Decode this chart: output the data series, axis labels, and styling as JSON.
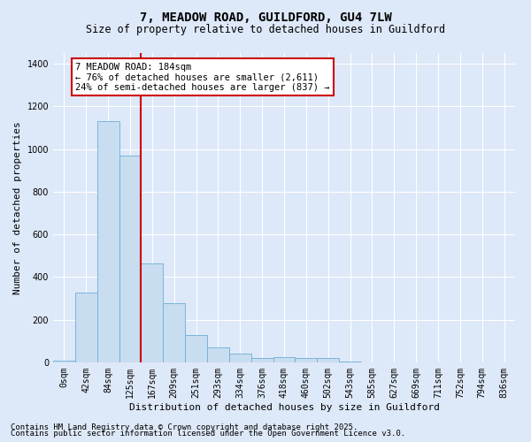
{
  "title": "7, MEADOW ROAD, GUILDFORD, GU4 7LW",
  "subtitle": "Size of property relative to detached houses in Guildford",
  "xlabel": "Distribution of detached houses by size in Guildford",
  "ylabel": "Number of detached properties",
  "categories": [
    "0sqm",
    "42sqm",
    "84sqm",
    "125sqm",
    "167sqm",
    "209sqm",
    "251sqm",
    "293sqm",
    "334sqm",
    "376sqm",
    "418sqm",
    "460sqm",
    "502sqm",
    "543sqm",
    "585sqm",
    "627sqm",
    "669sqm",
    "711sqm",
    "752sqm",
    "794sqm",
    "836sqm"
  ],
  "values": [
    8,
    327,
    1130,
    968,
    465,
    278,
    130,
    70,
    40,
    22,
    25,
    22,
    20,
    5,
    2,
    1,
    0,
    0,
    0,
    0,
    0
  ],
  "bar_color": "#c9ddf0",
  "bar_edge_color": "#6aaed6",
  "vline_x": 4,
  "vline_color": "#cc0000",
  "annotation_text": "7 MEADOW ROAD: 184sqm\n← 76% of detached houses are smaller (2,611)\n24% of semi-detached houses are larger (837) →",
  "annotation_box_color": "#cc0000",
  "annotation_text_color": "#000000",
  "annotation_facecolor": "#ffffff",
  "footer_line1": "Contains HM Land Registry data © Crown copyright and database right 2025.",
  "footer_line2": "Contains public sector information licensed under the Open Government Licence v3.0.",
  "ylim": [
    0,
    1450
  ],
  "background_color": "#dde8f8",
  "grid_color": "#ffffff",
  "title_fontsize": 10,
  "subtitle_fontsize": 8.5,
  "label_fontsize": 8,
  "tick_fontsize": 7,
  "footer_fontsize": 6.5,
  "annotation_fontsize": 7.5
}
